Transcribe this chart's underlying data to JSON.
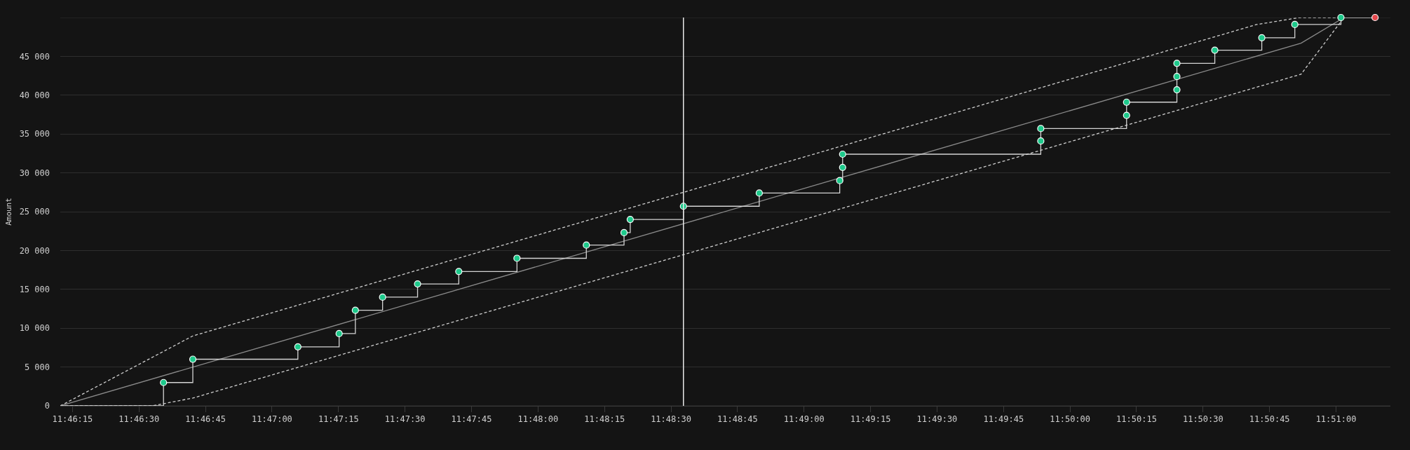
{
  "chart_data": {
    "type": "step",
    "ylabel": "Amount",
    "xlim": [
      11.770069,
      11.853403
    ],
    "xticks": [
      {
        "value": 11.770833,
        "label": "11:46:15"
      },
      {
        "value": 11.775,
        "label": "11:46:30"
      },
      {
        "value": 11.779167,
        "label": "11:46:45"
      },
      {
        "value": 11.783333,
        "label": "11:47:00"
      },
      {
        "value": 11.7875,
        "label": "11:47:15"
      },
      {
        "value": 11.791667,
        "label": "11:47:30"
      },
      {
        "value": 11.795833,
        "label": "11:47:45"
      },
      {
        "value": 11.8,
        "label": "11:48:00"
      },
      {
        "value": 11.804167,
        "label": "11:48:15"
      },
      {
        "value": 11.808333,
        "label": "11:48:30"
      },
      {
        "value": 11.8125,
        "label": "11:48:45"
      },
      {
        "value": 11.816667,
        "label": "11:49:00"
      },
      {
        "value": 11.820833,
        "label": "11:49:15"
      },
      {
        "value": 11.825,
        "label": "11:49:30"
      },
      {
        "value": 11.829167,
        "label": "11:49:45"
      },
      {
        "value": 11.833333,
        "label": "11:50:00"
      },
      {
        "value": 11.8375,
        "label": "11:50:15"
      },
      {
        "value": 11.841667,
        "label": "11:50:30"
      },
      {
        "value": 11.845833,
        "label": "11:50:45"
      },
      {
        "value": 11.85,
        "label": "11:51:00"
      }
    ],
    "ylim": [
      0,
      50000
    ],
    "yticks": [
      0,
      {
        "value": 5000,
        "label": "5 000"
      },
      {
        "value": 10000,
        "label": "10 000"
      },
      {
        "value": 15000,
        "label": "15 000"
      },
      {
        "value": 20000,
        "label": "20 000"
      },
      {
        "value": 25000,
        "label": "25 000"
      },
      {
        "value": 30000,
        "label": "30 000"
      },
      {
        "value": 35000,
        "label": "35 000"
      },
      {
        "value": 40000,
        "label": "40 000"
      },
      {
        "value": 45000,
        "label": "45 000"
      },
      {
        "value": 50000,
        "label": null
      }
    ],
    "grid": "y",
    "ref_lines": [
      {
        "axis": "x",
        "value": 11.809111,
        "color": "#e8e8e8"
      }
    ],
    "series": [
      {
        "type": "line",
        "color": "#d0d0d0",
        "line_style": "dashed",
        "x": [
          11.770069,
          11.778372,
          11.845028,
          11.847722,
          11.850306
        ],
        "values": [
          0,
          9000,
          49100,
          50000,
          50000
        ]
      },
      {
        "type": "line",
        "color": "#d0d0d0",
        "line_style": "dashed",
        "x": [
          11.770069,
          11.775833,
          11.778372,
          11.847806,
          11.8505
        ],
        "values": [
          0,
          0,
          1000,
          42700,
          50000
        ]
      },
      {
        "type": "line",
        "color": "#8a8a8a",
        "x": [
          11.770069,
          11.847806,
          11.8505
        ],
        "values": [
          0,
          46700,
          50000
        ]
      },
      {
        "color": "#d4d4d4",
        "x": [
          11.770069,
          11.776536,
          11.778372,
          11.784953,
          11.787539,
          11.788556,
          11.790261,
          11.792453,
          11.795036,
          11.798681,
          11.803028,
          11.805389,
          11.805778,
          11.809111,
          11.813861,
          11.818903,
          11.819083,
          11.819083,
          11.8315,
          11.8315,
          11.836875,
          11.836875,
          11.840028,
          11.840028,
          11.840028,
          11.842403,
          11.845347,
          11.847417,
          11.850306,
          11.852444
        ],
        "values": [
          0,
          3000,
          6000,
          7600,
          9300,
          12300,
          14000,
          15700,
          17300,
          19000,
          20700,
          22300,
          24000,
          25700,
          27400,
          29000,
          30700,
          32400,
          34100,
          35700,
          37400,
          39100,
          40700,
          42400,
          44100,
          45800,
          47400,
          49100,
          50000,
          50000
        ]
      },
      {
        "type": "scatter",
        "color": "#1ec98b",
        "marker": "circle",
        "x": [
          11.776536,
          11.778372,
          11.784953,
          11.787539,
          11.788556,
          11.790261,
          11.792453,
          11.795036,
          11.798681,
          11.803028,
          11.805389,
          11.805778,
          11.809111,
          11.813861,
          11.818903,
          11.819083,
          11.819083,
          11.8315,
          11.8315,
          11.836875,
          11.836875,
          11.840028,
          11.840028,
          11.840028,
          11.842403,
          11.845347,
          11.847417,
          11.850306
        ],
        "values": [
          3000,
          6000,
          7600,
          9300,
          12300,
          14000,
          15700,
          17300,
          19000,
          20700,
          22300,
          24000,
          25700,
          27400,
          29000,
          30700,
          32400,
          34100,
          35700,
          37400,
          39100,
          40700,
          42400,
          44100,
          45800,
          47400,
          49100,
          50000
        ]
      },
      {
        "type": "scatter",
        "color": "#e5484d",
        "marker": "circle",
        "x": [
          11.852444
        ],
        "values": [
          50000
        ]
      }
    ]
  }
}
